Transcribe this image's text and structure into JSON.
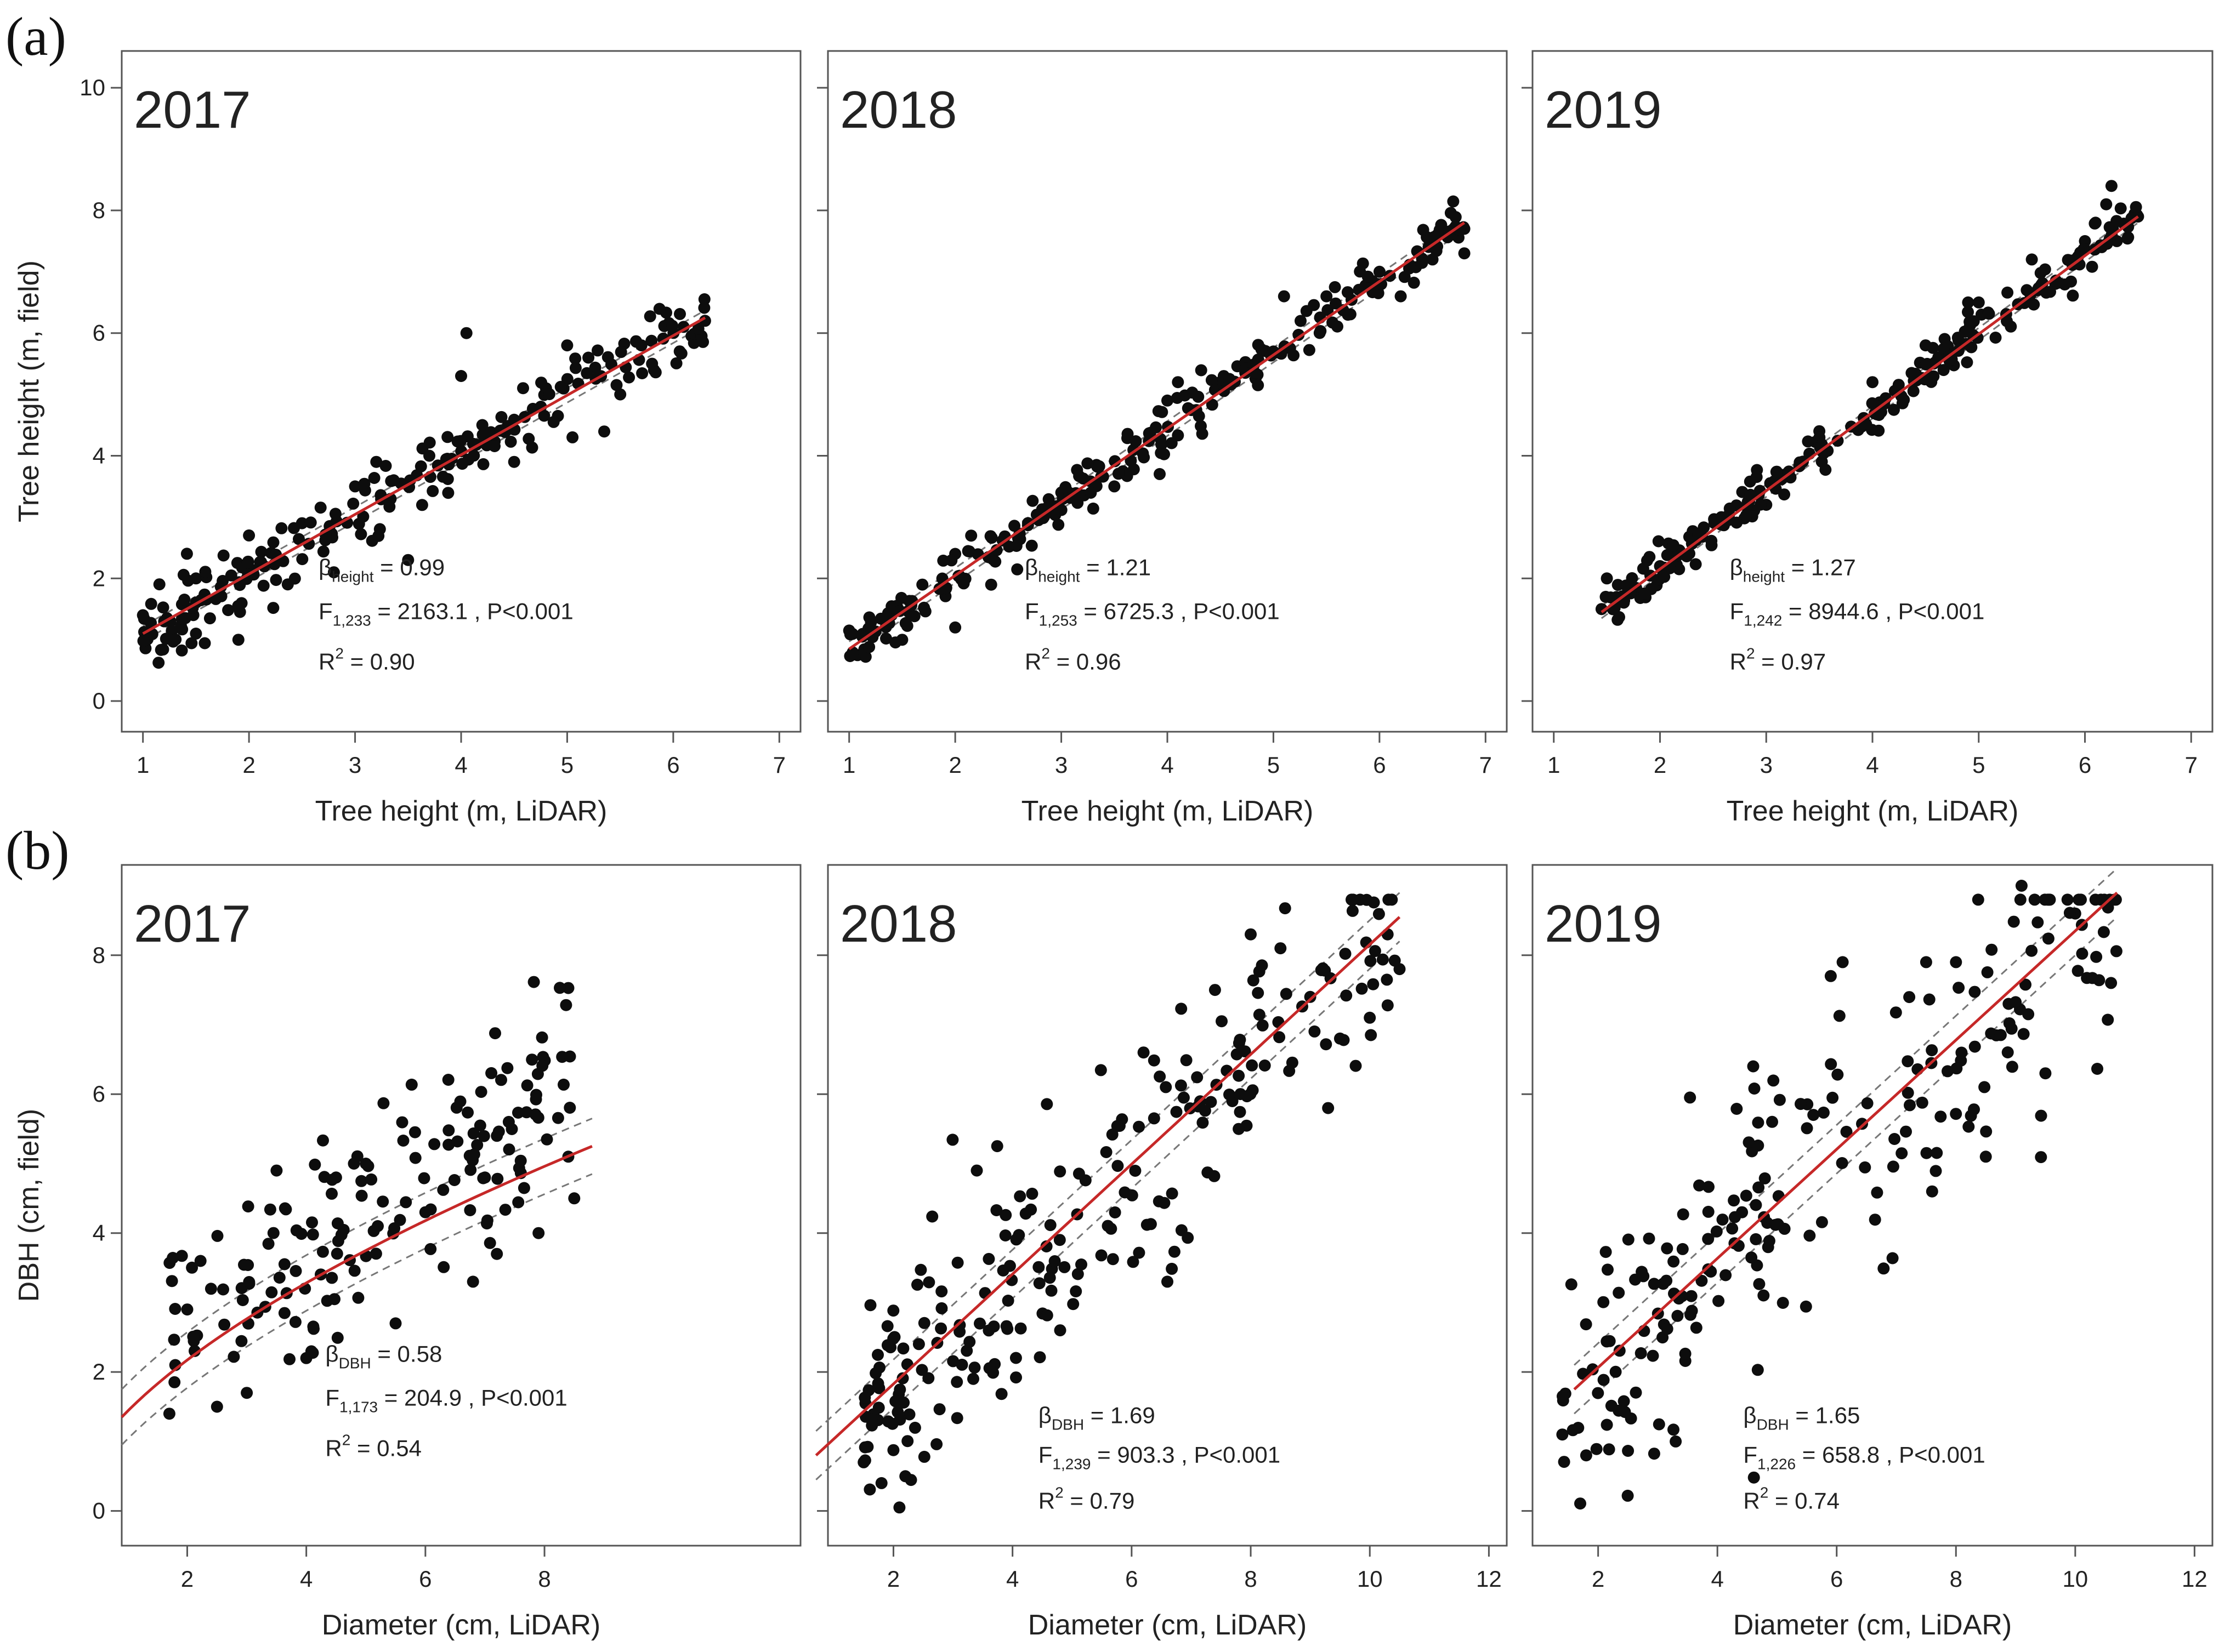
{
  "figure": {
    "row_labels": [
      "(a)",
      "(b)"
    ]
  },
  "chart_data": [
    {
      "type": "scatter",
      "title": "2017",
      "xlabel": "Tree height (m, LiDAR)",
      "ylabel": "Tree height (m, field)",
      "xlim": [
        0.8,
        7.2
      ],
      "ylim": [
        -0.5,
        10.6
      ],
      "xticks": [
        1,
        2,
        3,
        4,
        5,
        6,
        7
      ],
      "yticks": [
        0,
        2,
        4,
        6,
        8,
        10
      ],
      "stats": {
        "beta": {
          "symbol": "β",
          "sub": "height",
          "value": "= 0.99"
        },
        "f": {
          "symbol": "F",
          "sub": "1,233",
          "value": "= 2163.1 ,  P<0.001"
        },
        "r2": {
          "symbol": "R",
          "sup": "2",
          "value": "= 0.90"
        }
      },
      "fit": {
        "x": [
          1.0,
          6.3
        ],
        "y": [
          1.1,
          6.25
        ]
      },
      "band_width": 0.12,
      "n_points": 235,
      "x_range": [
        1.0,
        6.3
      ],
      "slope": 0.99,
      "intercept": 0.08,
      "noise": 0.28,
      "points": [
        [
          1.0,
          1.4
        ],
        [
          1.2,
          1.3
        ],
        [
          1.5,
          1.1
        ],
        [
          1.5,
          2.0
        ],
        [
          1.9,
          1.0
        ],
        [
          2.0,
          2.7
        ],
        [
          2.5,
          2.9
        ],
        [
          2.8,
          2.1
        ],
        [
          3.0,
          3.5
        ],
        [
          3.2,
          3.9
        ],
        [
          3.5,
          2.3
        ],
        [
          3.7,
          4.0
        ],
        [
          4.0,
          5.3
        ],
        [
          4.05,
          6.0
        ],
        [
          4.2,
          4.5
        ],
        [
          4.5,
          3.9
        ],
        [
          4.8,
          5.1
        ],
        [
          5.0,
          5.8
        ],
        [
          5.05,
          4.3
        ],
        [
          5.2,
          5.6
        ],
        [
          5.5,
          5.0
        ],
        [
          5.7,
          5.8
        ],
        [
          5.8,
          5.5
        ],
        [
          6.3,
          6.2
        ]
      ]
    },
    {
      "type": "scatter",
      "title": "2018",
      "xlabel": "Tree height (m, LiDAR)",
      "ylabel": "",
      "xlim": [
        0.8,
        7.2
      ],
      "ylim": [
        -0.5,
        10.6
      ],
      "xticks": [
        1,
        2,
        3,
        4,
        5,
        6,
        7
      ],
      "yticks": [
        0,
        2,
        4,
        6,
        8,
        10
      ],
      "stats": {
        "beta": {
          "symbol": "β",
          "sub": "height",
          "value": "= 1.21"
        },
        "f": {
          "symbol": "F",
          "sub": "1,253",
          "value": "= 6725.3 ,  P<0.001"
        },
        "r2": {
          "symbol": "R",
          "sup": "2",
          "value": "= 0.96"
        }
      },
      "fit": {
        "x": [
          1.0,
          6.8
        ],
        "y": [
          0.85,
          7.8
        ]
      },
      "band_width": 0.12,
      "n_points": 255,
      "x_range": [
        1.0,
        6.8
      ],
      "slope": 1.2,
      "intercept": -0.35,
      "noise": 0.22,
      "points": [
        [
          1.0,
          1.15
        ],
        [
          1.4,
          1.4
        ],
        [
          1.5,
          1.0
        ],
        [
          2.0,
          1.2
        ],
        [
          2.0,
          2.4
        ],
        [
          3.0,
          3.4
        ],
        [
          3.5,
          3.5
        ],
        [
          4.0,
          4.9
        ],
        [
          4.1,
          5.2
        ],
        [
          4.5,
          5.2
        ],
        [
          5.0,
          5.7
        ],
        [
          5.1,
          6.6
        ],
        [
          5.5,
          6.6
        ],
        [
          6.0,
          7.0
        ],
        [
          6.2,
          6.6
        ],
        [
          6.5,
          7.2
        ],
        [
          6.7,
          7.7
        ],
        [
          6.8,
          7.3
        ],
        [
          6.8,
          7.7
        ]
      ]
    },
    {
      "type": "scatter",
      "title": "2019",
      "xlabel": "Tree height (m, LiDAR)",
      "ylabel": "",
      "xlim": [
        0.8,
        7.2
      ],
      "ylim": [
        -0.5,
        10.6
      ],
      "xticks": [
        1,
        2,
        3,
        4,
        5,
        6,
        7
      ],
      "yticks": [
        0,
        2,
        4,
        6,
        8,
        10
      ],
      "stats": {
        "beta": {
          "symbol": "β",
          "sub": "height",
          "value": "= 1.27"
        },
        "f": {
          "symbol": "F",
          "sub": "1,242",
          "value": "= 8944.6 ,  P<0.001"
        },
        "r2": {
          "symbol": "R",
          "sup": "2",
          "value": "= 0.97"
        }
      },
      "fit": {
        "x": [
          1.45,
          6.5
        ],
        "y": [
          1.45,
          7.9
        ]
      },
      "band_width": 0.1,
      "n_points": 244,
      "x_range": [
        1.45,
        6.5
      ],
      "slope": 1.27,
      "intercept": -0.35,
      "noise": 0.18,
      "points": [
        [
          1.45,
          1.5
        ],
        [
          1.5,
          2.0
        ],
        [
          2.0,
          2.2
        ],
        [
          3.0,
          3.2
        ],
        [
          3.5,
          4.4
        ],
        [
          4.0,
          5.2
        ],
        [
          4.5,
          5.8
        ],
        [
          4.9,
          6.5
        ],
        [
          5.0,
          6.5
        ],
        [
          5.5,
          7.2
        ],
        [
          6.0,
          7.5
        ],
        [
          6.1,
          7.8
        ],
        [
          6.2,
          8.1
        ],
        [
          6.25,
          8.4
        ],
        [
          6.3,
          7.5
        ],
        [
          6.5,
          7.9
        ]
      ]
    },
    {
      "type": "scatter",
      "title": "2017",
      "xlabel": "Diameter (cm, LiDAR)",
      "ylabel": "DBH (cm, field)",
      "xlim": [
        0.9,
        12.3
      ],
      "ylim": [
        -0.5,
        9.3
      ],
      "xticks": [
        2,
        4,
        6,
        8
      ],
      "yticks": [
        0,
        2,
        4,
        6,
        8
      ],
      "stats": {
        "beta": {
          "symbol": "β",
          "sub": "DBH",
          "value": "= 0.58"
        },
        "f": {
          "symbol": "F",
          "sub": "1,173",
          "value": "= 204.9 ,  P<0.001"
        },
        "r2": {
          "symbol": "R",
          "sup": "2",
          "value": "= 0.54"
        }
      },
      "fit": {
        "x": [
          0.9,
          8.8
        ],
        "y": [
          1.35,
          5.25
        ],
        "curve": "power"
      },
      "band_width": 0.4,
      "n_points": 175,
      "x_range": [
        1.7,
        8.5
      ],
      "slope": 0.58,
      "intercept": 1.3,
      "noise": 0.75,
      "points": [
        [
          1.7,
          1.4
        ],
        [
          1.8,
          2.1
        ],
        [
          2.0,
          2.9
        ],
        [
          2.5,
          1.5
        ],
        [
          3.0,
          1.7
        ],
        [
          3.5,
          4.9
        ],
        [
          4.0,
          2.2
        ],
        [
          4.5,
          4.8
        ],
        [
          4.8,
          5.0
        ],
        [
          5.0,
          5.0
        ],
        [
          5.2,
          4.1
        ],
        [
          5.5,
          2.7
        ],
        [
          6.0,
          4.3
        ],
        [
          6.8,
          3.3
        ],
        [
          7.0,
          4.8
        ],
        [
          7.2,
          3.7
        ],
        [
          7.2,
          5.4
        ],
        [
          7.4,
          5.6
        ],
        [
          7.9,
          4.0
        ],
        [
          8.4,
          5.1
        ],
        [
          8.5,
          4.5
        ]
      ]
    },
    {
      "type": "scatter",
      "title": "2018",
      "xlabel": "Diameter (cm, LiDAR)",
      "ylabel": "",
      "xlim": [
        0.9,
        12.3
      ],
      "ylim": [
        -0.5,
        9.3
      ],
      "xticks": [
        2,
        4,
        6,
        8,
        10,
        12
      ],
      "yticks": [
        0,
        2,
        4,
        6,
        8
      ],
      "stats": {
        "beta": {
          "symbol": "β",
          "sub": "DBH",
          "value": "= 1.69"
        },
        "f": {
          "symbol": "F",
          "sub": "1,239",
          "value": "= 903.3 ,  P<0.001"
        },
        "r2": {
          "symbol": "R",
          "sup": "2",
          "value": "= 0.79"
        }
      },
      "fit": {
        "x": [
          0.7,
          10.5
        ],
        "y": [
          0.8,
          8.55
        ]
      },
      "band_width": 0.35,
      "n_points": 241,
      "x_range": [
        1.5,
        10.5
      ],
      "slope": 0.79,
      "intercept": 0.25,
      "noise": 0.85,
      "points": [
        [
          1.5,
          0.7
        ],
        [
          1.8,
          0.4
        ],
        [
          2.2,
          0.5
        ],
        [
          3.4,
          4.9
        ],
        [
          4.8,
          2.6
        ],
        [
          6.2,
          6.6
        ],
        [
          6.6,
          3.3
        ],
        [
          7.4,
          7.5
        ],
        [
          8.0,
          8.3
        ],
        [
          8.5,
          8.1
        ],
        [
          9.0,
          7.4
        ],
        [
          9.3,
          5.8
        ],
        [
          9.5,
          6.8
        ],
        [
          10.0,
          7.1
        ],
        [
          10.5,
          7.8
        ]
      ]
    },
    {
      "type": "scatter",
      "title": "2019",
      "xlabel": "Diameter (cm, LiDAR)",
      "ylabel": "",
      "xlim": [
        0.9,
        12.3
      ],
      "ylim": [
        -0.5,
        9.3
      ],
      "xticks": [
        2,
        4,
        6,
        8,
        10,
        12
      ],
      "yticks": [
        0,
        2,
        4,
        6,
        8
      ],
      "stats": {
        "beta": {
          "symbol": "β",
          "sub": "DBH",
          "value": "= 1.65"
        },
        "f": {
          "symbol": "F",
          "sub": "1,226",
          "value": "= 658.8 ,  P<0.001"
        },
        "r2": {
          "symbol": "R",
          "sup": "2",
          "value": "= 0.74"
        }
      },
      "fit": {
        "x": [
          1.6,
          10.7
        ],
        "y": [
          1.75,
          8.9
        ]
      },
      "band_width": 0.35,
      "n_points": 228,
      "x_range": [
        1.4,
        10.7
      ],
      "slope": 0.78,
      "intercept": 0.5,
      "noise": 1.0,
      "points": [
        [
          1.4,
          1.1
        ],
        [
          1.8,
          0.8
        ],
        [
          3.3,
          1.0
        ],
        [
          4.6,
          6.4
        ],
        [
          5.9,
          7.7
        ],
        [
          6.1,
          7.9
        ],
        [
          7.5,
          7.9
        ],
        [
          7.6,
          4.6
        ],
        [
          8.0,
          7.9
        ],
        [
          8.5,
          5.1
        ],
        [
          9.1,
          9.0
        ],
        [
          9.5,
          6.3
        ],
        [
          10.0,
          8.6
        ],
        [
          10.6,
          7.6
        ]
      ]
    }
  ]
}
